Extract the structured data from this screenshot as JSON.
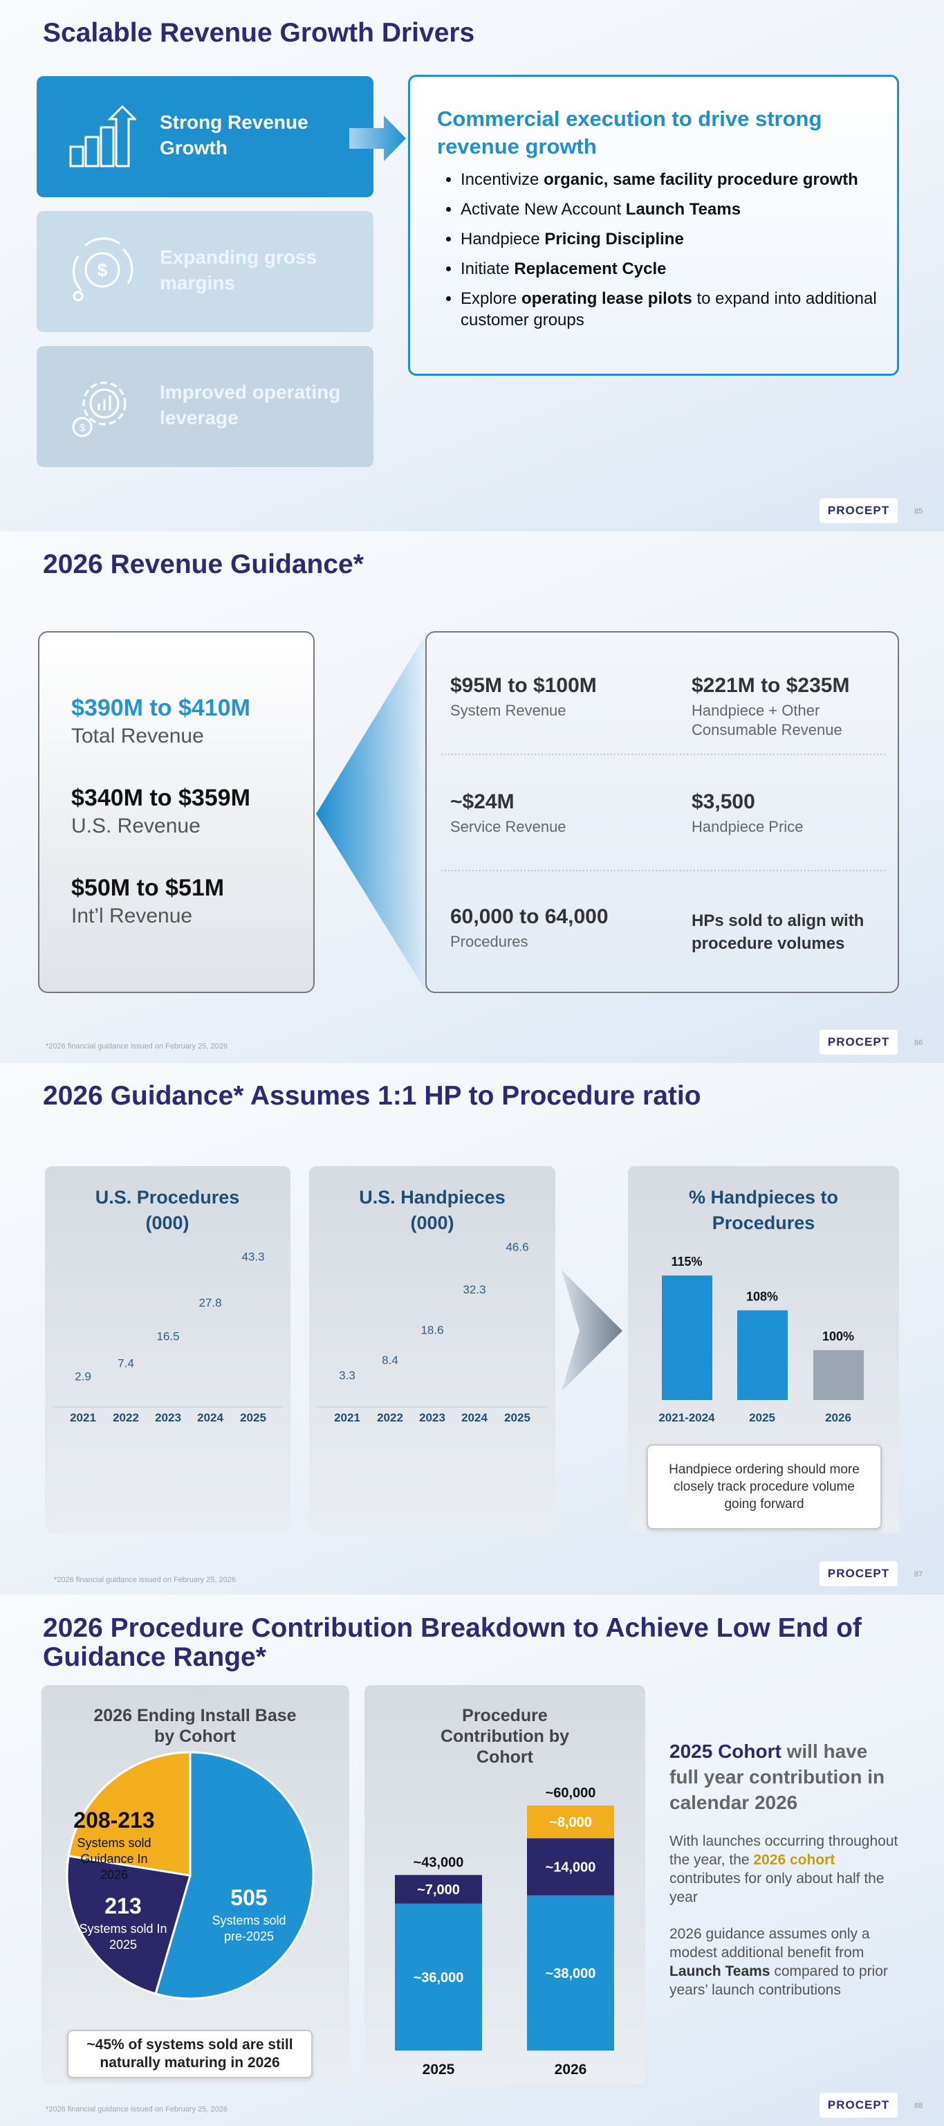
{
  "slides": [
    {
      "title": "Scalable Revenue Growth Drivers",
      "drivers": [
        "Strong Revenue Growth",
        "Expanding gross margins",
        "Improved operating leverage"
      ],
      "panel": {
        "heading": "Commercial execution to drive strong revenue growth",
        "bullets": [
          [
            "Incentivize ",
            "organic, same facility procedure growth"
          ],
          [
            "Activate New Account ",
            "Launch Teams"
          ],
          [
            "Handpiece ",
            "Pricing Discipline"
          ],
          [
            "Initiate ",
            "Replacement Cycle"
          ],
          [
            "Explore ",
            "operating lease pilots",
            " to expand into additional customer groups"
          ]
        ]
      },
      "logo": "PROCEPT",
      "page": 85
    },
    {
      "title": "2026 Revenue Guidance*",
      "guidance": [
        {
          "value": "$390M to $410M",
          "label": "Total Revenue"
        },
        {
          "value": "$340M to $359M",
          "label": "U.S. Revenue"
        },
        {
          "value": "$50M to $51M",
          "label": "Int’l Revenue"
        }
      ],
      "details": [
        {
          "value": "$95M to $100M",
          "label": "System Revenue"
        },
        {
          "value": "$221M to $235M",
          "label": "Handpiece + Other Consumable Revenue"
        },
        {
          "value": "~$24M",
          "label": "Service Revenue"
        },
        {
          "value": "$3,500",
          "label": "Handpiece Price"
        },
        {
          "value": "60,000 to 64,000",
          "label": "Procedures"
        },
        {
          "value": "HPs sold to align with procedure volumes"
        }
      ],
      "footnote": "*2026  financial guidance issued on February 25, 2026",
      "logo": "PROCEPT",
      "page": 86
    },
    {
      "title": "2026 Guidance* Assumes 1:1 HP to Procedure ratio",
      "charts": [
        {
          "type": "label",
          "title": "U.S. Procedures (000)",
          "categories": [
            "2021",
            "2022",
            "2023",
            "2024",
            "2025"
          ],
          "values": [
            2.9,
            7.4,
            16.5,
            27.8,
            43.3
          ]
        },
        {
          "type": "label",
          "title": "U.S. Handpieces (000)",
          "categories": [
            "2021",
            "2022",
            "2023",
            "2024",
            "2025"
          ],
          "values": [
            3.3,
            8.4,
            18.6,
            32.3,
            46.6
          ]
        },
        {
          "type": "bar",
          "title": "% Handpieces to Procedures",
          "categories": [
            "2021-2024",
            "2025",
            "2026"
          ],
          "values": [
            115,
            108,
            100
          ],
          "value_labels": [
            "115%",
            "108%",
            "100%"
          ],
          "colors": [
            "#1f8fd4",
            "#1f8fd4",
            "#9ba6b2"
          ]
        }
      ],
      "note": "Handpiece ordering should more closely track procedure volume going forward",
      "footnote": "*2026 financial guidance issued on February 25, 2026",
      "logo": "PROCEPT",
      "page": 87
    },
    {
      "title": "2026 Procedure Contribution Breakdown to Achieve Low End of Guidance Range*",
      "charts": [
        {
          "type": "pie",
          "title": "2026 Ending Install Base by Cohort",
          "categories": [
            "Systems sold pre-2025",
            "Systems sold In 2025",
            "Systems sold Guidance In 2026"
          ],
          "values": [
            505,
            213,
            208
          ],
          "value_labels": [
            "505",
            "213",
            "208-213"
          ],
          "colors": [
            "#1f92d4",
            "#2b2768",
            "#f2ae1c"
          ]
        },
        {
          "type": "bar",
          "stacked": true,
          "title": "Procedure Contribution by Cohort",
          "categories": [
            "2025",
            "2026"
          ],
          "series": [
            {
              "color": "#1f92d4",
              "values": [
                36000,
                38000
              ],
              "value_labels": [
                "~36,000",
                "~38,000"
              ]
            },
            {
              "color": "#2b2768",
              "values": [
                7000,
                14000
              ],
              "value_labels": [
                "~7,000",
                "~14,000"
              ]
            },
            {
              "color": "#f2ae1c",
              "values": [
                null,
                8000
              ],
              "value_labels": [
                null,
                "~8,000"
              ]
            }
          ],
          "totals": [
            43000,
            60000
          ],
          "total_labels": [
            "~43,000",
            "~60,000"
          ]
        }
      ],
      "note": "~45% of systems sold are still naturally maturing in 2026",
      "callout": {
        "heading": [
          "2025 Cohort",
          " will have full year contribution in calendar 2026"
        ],
        "paragraphs": [
          [
            "With launches occurring throughout the year, the ",
            "2026 cohort",
            " contributes for only about half the year"
          ],
          [
            "2026 guidance assumes only a modest additional benefit from ",
            "Launch Teams",
            " compared to prior years’ launch contributions"
          ]
        ]
      },
      "footnote": "*2026  financial guidance issued on February 25, 2026",
      "logo": "PROCEPT",
      "page": 88
    }
  ]
}
